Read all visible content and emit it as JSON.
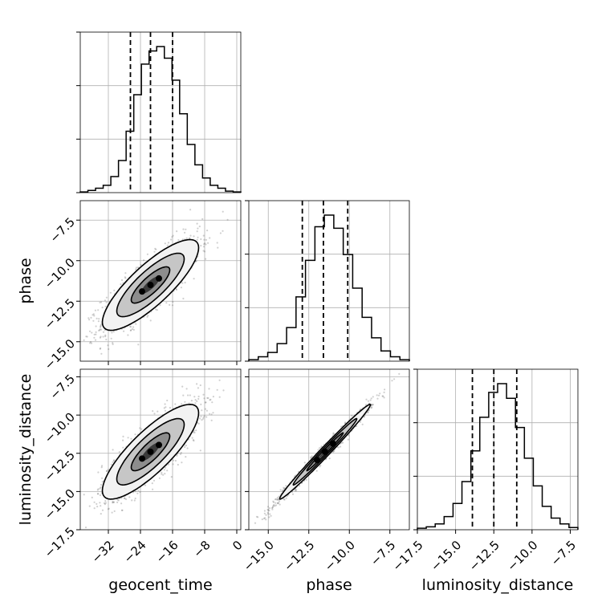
{
  "chart_data": {
    "type": "corner",
    "parameters": [
      "geocent_time",
      "phase",
      "luminosity_distance"
    ],
    "axes": {
      "geocent_time": {
        "range": [
          -39,
          1
        ],
        "ticks": [
          -32,
          -24,
          -16,
          -8,
          0
        ],
        "tick_labels": [
          "−32",
          "−24",
          "−16",
          "−8",
          "0"
        ]
      },
      "phase": {
        "range": [
          -16.2,
          -6.3
        ],
        "ticks": [
          -15.0,
          -12.5,
          -10.0,
          -7.5
        ],
        "tick_labels": [
          "−15.0",
          "−12.5",
          "−10.0",
          "−7.5"
        ]
      },
      "luminosity_distance": {
        "range": [
          -17.5,
          -7.0
        ],
        "ticks": [
          -17.5,
          -15.0,
          -12.5,
          -10.0,
          -7.5
        ],
        "tick_labels": [
          "−17.5",
          "−15.0",
          "−12.5",
          "−10.0",
          "−7.5"
        ]
      }
    },
    "marginals": [
      {
        "parameter": "geocent_time",
        "quantiles": [
          -26.5,
          -21.5,
          -16.0
        ],
        "max_count": 1.0,
        "bins": {
          "range": [
            -39,
            1
          ],
          "counts": [
            0.005,
            0.015,
            0.03,
            0.05,
            0.11,
            0.22,
            0.42,
            0.67,
            0.88,
            0.97,
            1.0,
            0.92,
            0.77,
            0.54,
            0.33,
            0.19,
            0.1,
            0.05,
            0.03,
            0.01,
            0.005
          ]
        }
      },
      {
        "parameter": "phase",
        "quantiles": [
          -12.9,
          -11.6,
          -10.1
        ],
        "max_count": 1.0,
        "bins": {
          "range": [
            -16.2,
            -6.3
          ],
          "counts": [
            0.01,
            0.03,
            0.06,
            0.12,
            0.23,
            0.44,
            0.69,
            0.92,
            1.0,
            0.91,
            0.73,
            0.5,
            0.3,
            0.16,
            0.07,
            0.03,
            0.01
          ]
        }
      },
      {
        "parameter": "luminosity_distance",
        "quantiles": [
          -13.9,
          -12.5,
          -11.0
        ],
        "max_count": 1.0,
        "bins": {
          "range": [
            -17.5,
            -7.0
          ],
          "counts": [
            0.01,
            0.02,
            0.04,
            0.09,
            0.18,
            0.33,
            0.54,
            0.77,
            0.94,
            1.0,
            0.9,
            0.7,
            0.49,
            0.3,
            0.16,
            0.08,
            0.04,
            0.015
          ]
        }
      }
    ],
    "pairs": [
      {
        "x": "geocent_time",
        "y": "phase",
        "mean": [
          -21.5,
          -11.5
        ],
        "sd": [
          6.0,
          1.4
        ],
        "rho": 0.82
      },
      {
        "x": "geocent_time",
        "y": "luminosity_distance",
        "mean": [
          -21.5,
          -12.4
        ],
        "sd": [
          6.0,
          1.55
        ],
        "rho": 0.82
      },
      {
        "x": "phase",
        "y": "luminosity_distance",
        "mean": [
          -11.5,
          -12.4
        ],
        "sd": [
          1.4,
          1.55
        ],
        "rho": 0.99
      }
    ],
    "grid": true,
    "colors": {
      "ink": "#000000",
      "grid": "#b0b0b0",
      "samples": "#555555"
    }
  }
}
